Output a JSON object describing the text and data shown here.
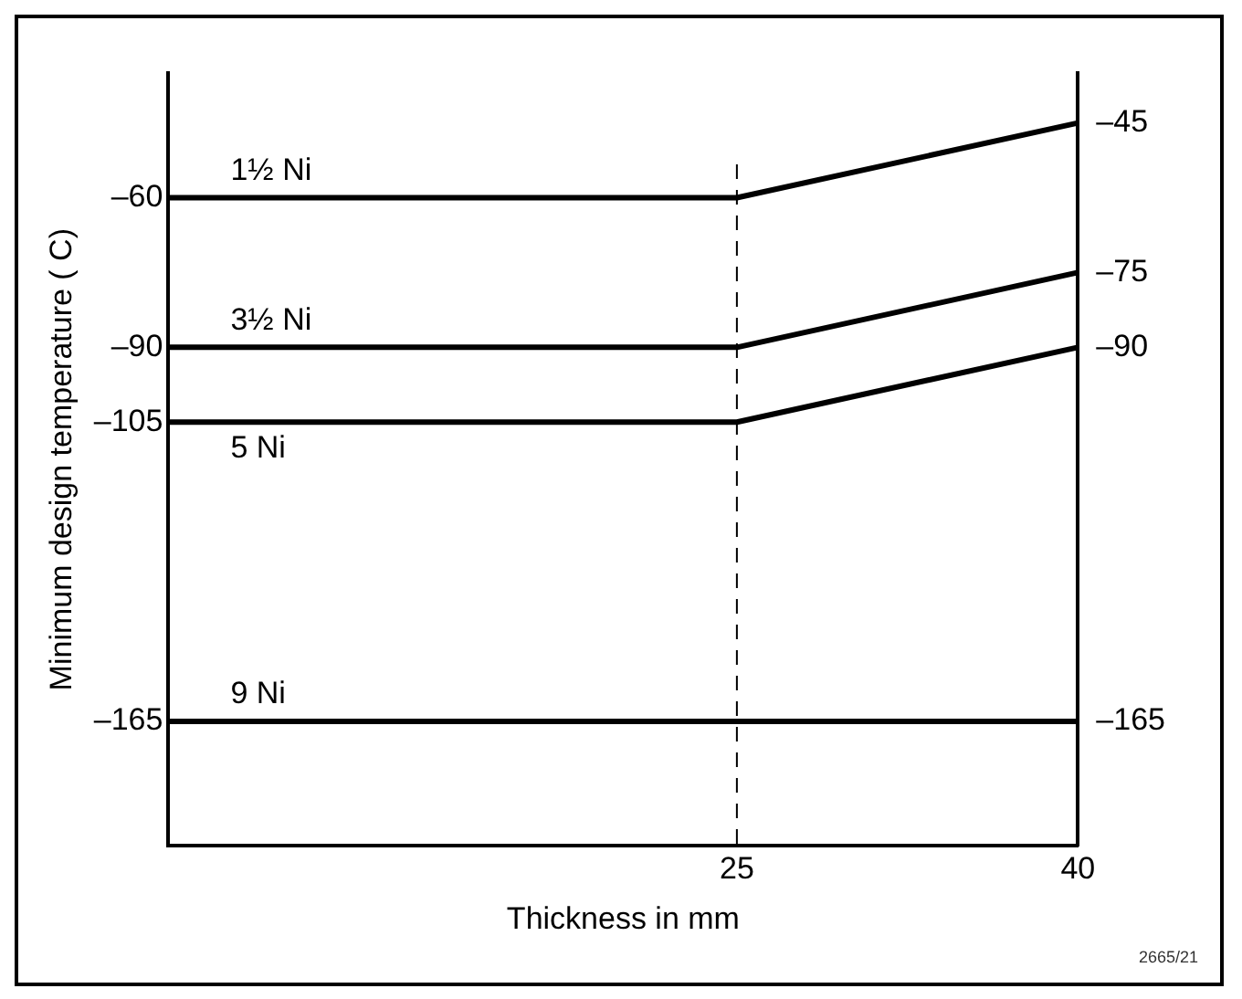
{
  "chart_data": {
    "type": "line",
    "xlabel": "Thickness in mm",
    "ylabel": "Minimum design temperature ( C)",
    "x": [
      0,
      25,
      40
    ],
    "xlim": [
      0,
      40
    ],
    "xticks": [
      25,
      40
    ],
    "ylim": [
      -190,
      -35
    ],
    "yticks": [
      {
        "value": -60,
        "label": "–60"
      },
      {
        "value": -90,
        "label": "–90"
      },
      {
        "value": -105,
        "label": "–105"
      },
      {
        "value": -165,
        "label": "–165"
      }
    ],
    "y2lim": [
      -190,
      -35
    ],
    "y2ticks": [
      {
        "value": -45,
        "label": "–45"
      },
      {
        "value": -75,
        "label": "–75"
      },
      {
        "value": -90,
        "label": "–90"
      },
      {
        "value": -165,
        "label": "–165"
      }
    ],
    "series": [
      {
        "name": "1½ Ni",
        "color": "#000000",
        "values": [
          -60,
          -60,
          -45
        ]
      },
      {
        "name": "3½ Ni",
        "color": "#000000",
        "values": [
          -90,
          -90,
          -75
        ]
      },
      {
        "name": "5 Ni",
        "color": "#000000",
        "values": [
          -105,
          -105,
          -90
        ]
      },
      {
        "name": "9 Ni",
        "color": "#000000",
        "values": [
          -165,
          -165,
          -165
        ]
      }
    ],
    "ref_lines": [
      {
        "axis": "x",
        "value": 25,
        "color": "#000000",
        "line_style": "dashed"
      }
    ],
    "annotations": [
      "2665/21"
    ],
    "marker": "none",
    "line_style": "solid",
    "grid": false,
    "legend": false
  }
}
